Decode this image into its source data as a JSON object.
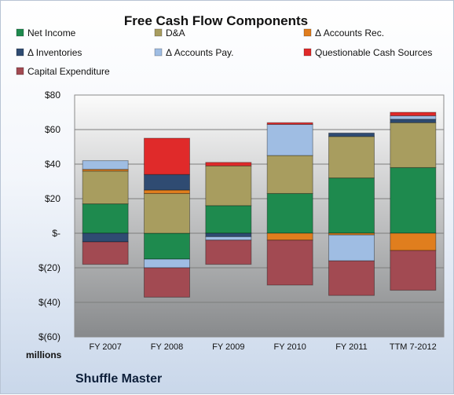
{
  "chart_data": {
    "type": "bar",
    "stacked": true,
    "title": "Free Cash Flow Components",
    "categories": [
      "FY 2007",
      "FY 2008",
      "FY 2009",
      "FY 2010",
      "FY 2011",
      "TTM 7-2012"
    ],
    "ylim": [
      -60,
      80
    ],
    "y_ticks": [
      80,
      60,
      40,
      20,
      0,
      -20,
      -40,
      -60
    ],
    "y_tick_labels": [
      "$80",
      "$60",
      "$40",
      "$20",
      "$-",
      "$(20)",
      "$(40)",
      "$(60)"
    ],
    "ylabel": "",
    "unit_label": "millions",
    "grid": true,
    "legend_position": "top",
    "series": [
      {
        "name": "Net Income",
        "color": "#1e8a4e",
        "values": [
          17,
          -15,
          16,
          23,
          32,
          38
        ]
      },
      {
        "name": "D&A",
        "color": "#a89d5f",
        "values": [
          19,
          23,
          23,
          22,
          24,
          26
        ]
      },
      {
        "name": "Δ Accounts Rec.",
        "color": "#e07e1e",
        "values": [
          1,
          2,
          0,
          -4,
          -1,
          -10
        ]
      },
      {
        "name": "Δ Inventories",
        "color": "#2f4b72",
        "values": [
          -5,
          9,
          -2,
          0,
          2,
          2
        ]
      },
      {
        "name": "Δ Accounts Pay.",
        "color": "#9fbde3",
        "values": [
          5,
          -5,
          -2,
          18,
          -15,
          2
        ]
      },
      {
        "name": "Questionable Cash Sources",
        "color": "#e02a2a",
        "values": [
          0,
          21,
          2,
          1,
          0,
          2
        ]
      },
      {
        "name": "Capital Expenditure",
        "color": "#a24a52",
        "values": [
          -13,
          -17,
          -14,
          -26,
          -20,
          -23
        ]
      }
    ]
  },
  "footer": {
    "company": "Shuffle Master"
  }
}
